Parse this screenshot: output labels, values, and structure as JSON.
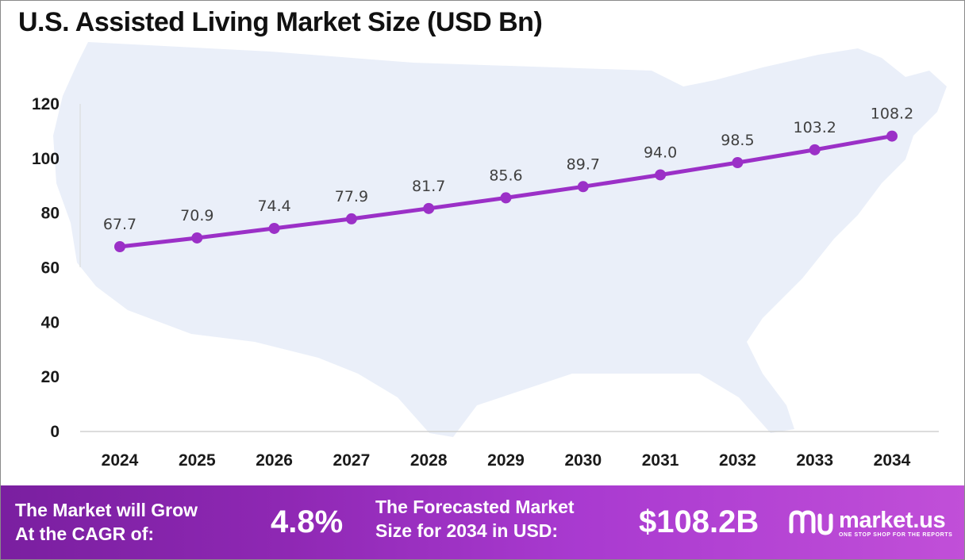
{
  "title": "U.S. Assisted Living Market Size (USD Bn)",
  "colors": {
    "line": "#9b30c7",
    "marker": "#9b30c7",
    "label": "#404040",
    "axis_text": "#1a1a1a",
    "map": "#eaeff9",
    "banner_start": "#7a1fa0",
    "banner_end": "#c14fd8"
  },
  "chart_data": {
    "type": "line",
    "title": "U.S. Assisted Living Market Size (USD Bn)",
    "xlabel": "",
    "ylabel": "",
    "x": [
      "2024",
      "2025",
      "2026",
      "2027",
      "2028",
      "2029",
      "2030",
      "2031",
      "2032",
      "2033",
      "2034"
    ],
    "series": [
      {
        "values": [
          67.7,
          70.9,
          74.4,
          77.9,
          81.7,
          85.6,
          89.7,
          94.0,
          98.5,
          103.2,
          108.2
        ]
      }
    ],
    "data_labels": [
      "67.7",
      "70.9",
      "74.4",
      "77.9",
      "81.7",
      "85.6",
      "89.7",
      "94.0",
      "98.5",
      "103.2",
      "108.2"
    ],
    "ylim": [
      0,
      120
    ],
    "yticks": [
      0,
      20,
      40,
      60,
      80,
      100,
      120
    ],
    "ytick_labels": [
      "0",
      "20",
      "40",
      "60",
      "80",
      "100",
      "120"
    ],
    "grid": false,
    "legend": "none"
  },
  "banner": {
    "cagr_line1": "The Market will Grow",
    "cagr_line2": "At the CAGR of:",
    "cagr_value": "4.8%",
    "forecast_line1": "The Forecasted Market",
    "forecast_line2": "Size for 2034 in USD:",
    "forecast_value": "$108.2B"
  },
  "logo": {
    "name": "market.us",
    "tagline": "ONE STOP SHOP FOR THE REPORTS",
    "icon": "market-us-logo-icon"
  },
  "background_icon": "us-map-silhouette"
}
